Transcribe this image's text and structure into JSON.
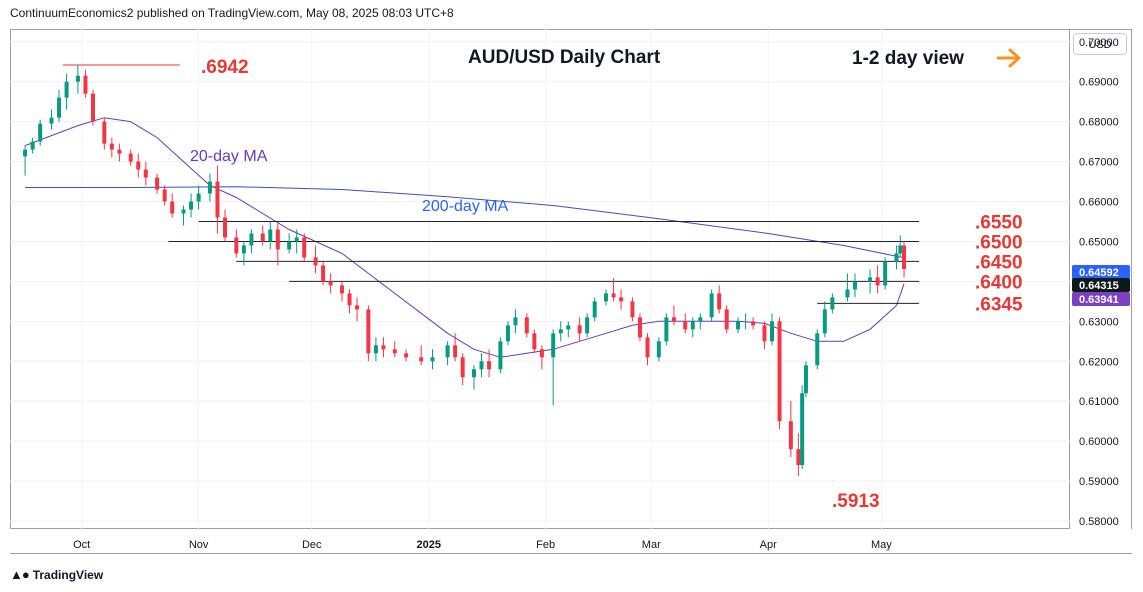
{
  "header": {
    "publisher": "ContinuumEconomics2 published on TradingView.com, May 08, 2025 08:03 UTC+8"
  },
  "branding": {
    "logo_text": "TradingView",
    "logo_icon": "tradingview-logo-icon"
  },
  "price_axis": {
    "currency": "USD",
    "ticks": [
      "0.70000",
      "0.69000",
      "0.68000",
      "0.67000",
      "0.66000",
      "0.65000",
      "0.64000",
      "0.63000",
      "0.62000",
      "0.61000",
      "0.60000",
      "0.59000",
      "0.58000"
    ],
    "badges": [
      {
        "label": "0.64592",
        "color": "#2962ff"
      },
      {
        "label": "0.64315",
        "color": "#0d1a1a"
      },
      {
        "label": "0.63941",
        "color": "#7b3fbf"
      }
    ]
  },
  "time_axis": {
    "labels": [
      "Oct",
      "Nov",
      "Dec",
      "2025",
      "Feb",
      "Mar",
      "Apr",
      "May"
    ]
  },
  "colors": {
    "up": "#089981",
    "down": "#f23645",
    "ma20": "#673ab7",
    "ma200": "#3f51b5",
    "level": "#e53935",
    "arrow": "#f7931e"
  },
  "chart_data": {
    "type": "candlestick",
    "title": "AUD/USD Daily Chart",
    "subtitle": "1-2 day view",
    "subtitle_icon": "right-arrow-icon",
    "ylim": [
      0.578,
      0.7032
    ],
    "annotations": [
      {
        "label": "20-day MA",
        "series": "ma20"
      },
      {
        "label": "200-day MA",
        "series": "ma200"
      }
    ],
    "levels": [
      {
        "label": ".6942",
        "value": 0.6942,
        "from": "2024-09-26",
        "to": "2024-10-27"
      },
      {
        "label": ".6550",
        "value": 0.655,
        "from": "2024-11-01",
        "to": "2025-05-11"
      },
      {
        "label": ".6500",
        "value": 0.65,
        "from": "2024-10-24",
        "to": "2025-05-11"
      },
      {
        "label": ".6450",
        "value": 0.645,
        "from": "2024-11-11",
        "to": "2025-05-11"
      },
      {
        "label": ".6400",
        "value": 0.64,
        "from": "2024-11-25",
        "to": "2025-05-11"
      },
      {
        "label": ".6345",
        "value": 0.6345,
        "from": "2025-04-14",
        "to": "2025-05-11"
      }
    ],
    "low_label": {
      "label": ".5913",
      "value": 0.5913,
      "date": "2025-04-09"
    },
    "ohlc": [
      [
        "2024-09-16",
        0.6713,
        0.674,
        0.6665,
        0.673
      ],
      [
        "2024-09-18",
        0.673,
        0.676,
        0.672,
        0.675
      ],
      [
        "2024-09-20",
        0.675,
        0.6805,
        0.674,
        0.6795
      ],
      [
        "2024-09-23",
        0.6795,
        0.683,
        0.678,
        0.681
      ],
      [
        "2024-09-25",
        0.681,
        0.688,
        0.68,
        0.686
      ],
      [
        "2024-09-27",
        0.686,
        0.692,
        0.683,
        0.69
      ],
      [
        "2024-09-30",
        0.69,
        0.6942,
        0.687,
        0.6915
      ],
      [
        "2024-10-02",
        0.6915,
        0.693,
        0.686,
        0.687
      ],
      [
        "2024-10-04",
        0.687,
        0.688,
        0.679,
        0.68
      ],
      [
        "2024-10-07",
        0.68,
        0.681,
        0.673,
        0.6745
      ],
      [
        "2024-10-09",
        0.6745,
        0.676,
        0.671,
        0.673
      ],
      [
        "2024-10-11",
        0.673,
        0.6745,
        0.67,
        0.672
      ],
      [
        "2024-10-14",
        0.672,
        0.673,
        0.669,
        0.67
      ],
      [
        "2024-10-16",
        0.67,
        0.672,
        0.666,
        0.668
      ],
      [
        "2024-10-18",
        0.668,
        0.67,
        0.664,
        0.666
      ],
      [
        "2024-10-21",
        0.666,
        0.667,
        0.662,
        0.663
      ],
      [
        "2024-10-23",
        0.663,
        0.664,
        0.659,
        0.66
      ],
      [
        "2024-10-25",
        0.66,
        0.662,
        0.656,
        0.657
      ],
      [
        "2024-10-28",
        0.657,
        0.659,
        0.654,
        0.658
      ],
      [
        "2024-10-30",
        0.658,
        0.662,
        0.656,
        0.66
      ],
      [
        "2024-11-01",
        0.66,
        0.664,
        0.658,
        0.662
      ],
      [
        "2024-11-04",
        0.662,
        0.667,
        0.66,
        0.665
      ],
      [
        "2024-11-06",
        0.665,
        0.669,
        0.652,
        0.656
      ],
      [
        "2024-11-08",
        0.656,
        0.658,
        0.65,
        0.651
      ],
      [
        "2024-11-11",
        0.651,
        0.653,
        0.646,
        0.647
      ],
      [
        "2024-11-13",
        0.647,
        0.65,
        0.644,
        0.649
      ],
      [
        "2024-11-15",
        0.649,
        0.653,
        0.647,
        0.652
      ],
      [
        "2024-11-18",
        0.652,
        0.654,
        0.649,
        0.65
      ],
      [
        "2024-11-20",
        0.65,
        0.655,
        0.648,
        0.653
      ],
      [
        "2024-11-22",
        0.653,
        0.6545,
        0.644,
        0.648
      ],
      [
        "2024-11-25",
        0.648,
        0.652,
        0.647,
        0.65
      ],
      [
        "2024-11-27",
        0.65,
        0.653,
        0.647,
        0.651
      ],
      [
        "2024-11-29",
        0.651,
        0.652,
        0.645,
        0.646
      ],
      [
        "2024-12-02",
        0.646,
        0.649,
        0.642,
        0.644
      ],
      [
        "2024-12-04",
        0.644,
        0.645,
        0.639,
        0.64
      ],
      [
        "2024-12-06",
        0.64,
        0.642,
        0.637,
        0.639
      ],
      [
        "2024-12-09",
        0.639,
        0.64,
        0.635,
        0.637
      ],
      [
        "2024-12-11",
        0.637,
        0.638,
        0.632,
        0.634
      ],
      [
        "2024-12-13",
        0.634,
        0.636,
        0.63,
        0.633
      ],
      [
        "2024-12-16",
        0.633,
        0.634,
        0.62,
        0.622
      ],
      [
        "2024-12-18",
        0.622,
        0.626,
        0.62,
        0.624
      ],
      [
        "2024-12-20",
        0.624,
        0.626,
        0.621,
        0.623
      ],
      [
        "2024-12-23",
        0.623,
        0.625,
        0.621,
        0.622
      ],
      [
        "2024-12-26",
        0.622,
        0.623,
        0.62,
        0.621
      ],
      [
        "2024-12-30",
        0.621,
        0.624,
        0.619,
        0.62
      ],
      [
        "2025-01-02",
        0.62,
        0.623,
        0.618,
        0.621
      ],
      [
        "2025-01-06",
        0.621,
        0.625,
        0.619,
        0.624
      ],
      [
        "2025-01-08",
        0.624,
        0.627,
        0.62,
        0.621
      ],
      [
        "2025-01-10",
        0.621,
        0.622,
        0.614,
        0.616
      ],
      [
        "2025-01-13",
        0.616,
        0.619,
        0.613,
        0.618
      ],
      [
        "2025-01-15",
        0.618,
        0.622,
        0.616,
        0.62
      ],
      [
        "2025-01-17",
        0.62,
        0.623,
        0.616,
        0.618
      ],
      [
        "2025-01-20",
        0.618,
        0.626,
        0.617,
        0.625
      ],
      [
        "2025-01-22",
        0.625,
        0.63,
        0.624,
        0.629
      ],
      [
        "2025-01-24",
        0.629,
        0.633,
        0.627,
        0.631
      ],
      [
        "2025-01-27",
        0.631,
        0.632,
        0.626,
        0.627
      ],
      [
        "2025-01-29",
        0.627,
        0.628,
        0.622,
        0.623
      ],
      [
        "2025-01-31",
        0.623,
        0.624,
        0.618,
        0.621
      ],
      [
        "2025-02-03",
        0.621,
        0.628,
        0.609,
        0.627
      ],
      [
        "2025-02-05",
        0.627,
        0.63,
        0.625,
        0.628
      ],
      [
        "2025-02-07",
        0.628,
        0.63,
        0.626,
        0.629
      ],
      [
        "2025-02-10",
        0.629,
        0.631,
        0.625,
        0.627
      ],
      [
        "2025-02-12",
        0.627,
        0.632,
        0.626,
        0.631
      ],
      [
        "2025-02-14",
        0.631,
        0.636,
        0.63,
        0.635
      ],
      [
        "2025-02-17",
        0.635,
        0.638,
        0.634,
        0.637
      ],
      [
        "2025-02-19",
        0.637,
        0.6408,
        0.635,
        0.636
      ],
      [
        "2025-02-21",
        0.636,
        0.638,
        0.633,
        0.635
      ],
      [
        "2025-02-24",
        0.635,
        0.636,
        0.63,
        0.631
      ],
      [
        "2025-02-26",
        0.631,
        0.632,
        0.625,
        0.626
      ],
      [
        "2025-02-28",
        0.626,
        0.627,
        0.619,
        0.621
      ],
      [
        "2025-03-03",
        0.621,
        0.626,
        0.62,
        0.625
      ],
      [
        "2025-03-05",
        0.625,
        0.632,
        0.624,
        0.631
      ],
      [
        "2025-03-07",
        0.631,
        0.634,
        0.629,
        0.63
      ],
      [
        "2025-03-10",
        0.63,
        0.632,
        0.627,
        0.628
      ],
      [
        "2025-03-12",
        0.628,
        0.631,
        0.626,
        0.63
      ],
      [
        "2025-03-14",
        0.63,
        0.632,
        0.628,
        0.631
      ],
      [
        "2025-03-17",
        0.631,
        0.638,
        0.63,
        0.637
      ],
      [
        "2025-03-19",
        0.637,
        0.639,
        0.632,
        0.633
      ],
      [
        "2025-03-21",
        0.633,
        0.634,
        0.627,
        0.628
      ],
      [
        "2025-03-24",
        0.628,
        0.631,
        0.627,
        0.63
      ],
      [
        "2025-03-26",
        0.63,
        0.632,
        0.628,
        0.63
      ],
      [
        "2025-03-28",
        0.63,
        0.631,
        0.628,
        0.629
      ],
      [
        "2025-03-31",
        0.629,
        0.63,
        0.623,
        0.625
      ],
      [
        "2025-04-02",
        0.625,
        0.632,
        0.624,
        0.63
      ],
      [
        "2025-04-04",
        0.63,
        0.631,
        0.603,
        0.605
      ],
      [
        "2025-04-07",
        0.605,
        0.61,
        0.596,
        0.598
      ],
      [
        "2025-04-09",
        0.598,
        0.602,
        0.5913,
        0.594
      ],
      [
        "2025-04-10",
        0.594,
        0.614,
        0.593,
        0.612
      ],
      [
        "2025-04-11",
        0.612,
        0.62,
        0.611,
        0.619
      ],
      [
        "2025-04-14",
        0.619,
        0.628,
        0.618,
        0.627
      ],
      [
        "2025-04-16",
        0.627,
        0.635,
        0.626,
        0.633
      ],
      [
        "2025-04-18",
        0.633,
        0.637,
        0.632,
        0.636
      ],
      [
        "2025-04-22",
        0.636,
        0.642,
        0.635,
        0.638
      ],
      [
        "2025-04-24",
        0.638,
        0.642,
        0.636,
        0.64
      ],
      [
        "2025-04-28",
        0.64,
        0.643,
        0.637,
        0.641
      ],
      [
        "2025-04-30",
        0.641,
        0.644,
        0.637,
        0.639
      ],
      [
        "2025-05-02",
        0.639,
        0.646,
        0.638,
        0.645
      ],
      [
        "2025-05-05",
        0.645,
        0.649,
        0.643,
        0.647
      ],
      [
        "2025-05-06",
        0.647,
        0.6515,
        0.646,
        0.649
      ],
      [
        "2025-05-07",
        0.649,
        0.65,
        0.641,
        0.6431
      ]
    ],
    "ma20": [
      [
        "2024-09-16",
        0.674
      ],
      [
        "2024-09-30",
        0.679
      ],
      [
        "2024-10-07",
        0.681
      ],
      [
        "2024-10-14",
        0.68
      ],
      [
        "2024-10-21",
        0.676
      ],
      [
        "2024-10-28",
        0.67
      ],
      [
        "2024-11-04",
        0.664
      ],
      [
        "2024-11-11",
        0.661
      ],
      [
        "2024-11-18",
        0.657
      ],
      [
        "2024-11-25",
        0.653
      ],
      [
        "2024-12-02",
        0.65
      ],
      [
        "2024-12-09",
        0.647
      ],
      [
        "2024-12-16",
        0.642
      ],
      [
        "2024-12-23",
        0.637
      ],
      [
        "2024-12-30",
        0.632
      ],
      [
        "2025-01-06",
        0.627
      ],
      [
        "2025-01-13",
        0.623
      ],
      [
        "2025-01-20",
        0.621
      ],
      [
        "2025-01-27",
        0.622
      ],
      [
        "2025-02-03",
        0.623
      ],
      [
        "2025-02-10",
        0.625
      ],
      [
        "2025-02-17",
        0.627
      ],
      [
        "2025-02-24",
        0.629
      ],
      [
        "2025-03-03",
        0.63
      ],
      [
        "2025-03-10",
        0.63
      ],
      [
        "2025-03-17",
        0.63
      ],
      [
        "2025-03-24",
        0.63
      ],
      [
        "2025-03-31",
        0.6295
      ],
      [
        "2025-04-07",
        0.627
      ],
      [
        "2025-04-14",
        0.625
      ],
      [
        "2025-04-21",
        0.625
      ],
      [
        "2025-04-28",
        0.628
      ],
      [
        "2025-05-05",
        0.634
      ],
      [
        "2025-05-07",
        0.6394
      ]
    ],
    "ma200": [
      [
        "2024-09-16",
        0.6635
      ],
      [
        "2024-10-14",
        0.6635
      ],
      [
        "2024-11-11",
        0.6637
      ],
      [
        "2024-12-09",
        0.663
      ],
      [
        "2025-01-06",
        0.6612
      ],
      [
        "2025-02-03",
        0.659
      ],
      [
        "2025-03-03",
        0.6557
      ],
      [
        "2025-04-01",
        0.652
      ],
      [
        "2025-04-21",
        0.649
      ],
      [
        "2025-05-07",
        0.6459
      ]
    ]
  }
}
